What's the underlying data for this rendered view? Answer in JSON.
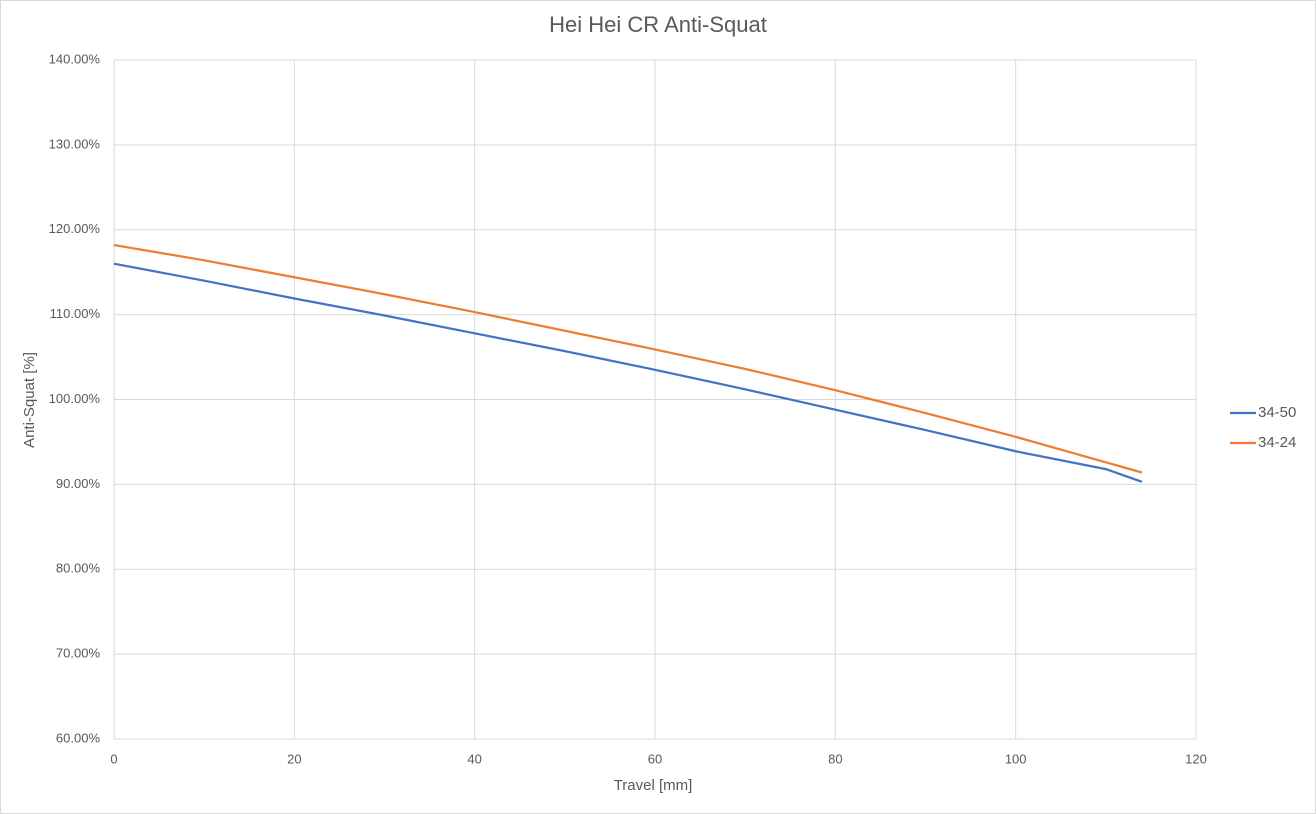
{
  "chart_data": {
    "type": "line",
    "title": "Hei Hei CR Anti-Squat",
    "x_label": "Travel [mm]",
    "y_label": "Anti-Squat [%]",
    "x": [
      0,
      10,
      20,
      30,
      40,
      50,
      60,
      70,
      80,
      90,
      100,
      110,
      114
    ],
    "series": [
      {
        "name": "34-50",
        "color": "#4472c4",
        "values": [
          116.0,
          114.0,
          111.9,
          109.9,
          107.8,
          105.7,
          103.5,
          101.2,
          98.8,
          96.4,
          93.9,
          91.8,
          90.3
        ]
      },
      {
        "name": "34-24",
        "color": "#ed7d31",
        "values": [
          118.2,
          116.4,
          114.4,
          112.4,
          110.3,
          108.1,
          105.9,
          103.6,
          101.1,
          98.4,
          95.6,
          92.6,
          91.4
        ]
      }
    ],
    "xlim": [
      0,
      120
    ],
    "xticks": [
      0,
      20,
      40,
      60,
      80,
      100,
      120
    ],
    "ylim": [
      60,
      140
    ],
    "yticks": [
      {
        "value": 60,
        "label": "60.00%"
      },
      {
        "value": 70,
        "label": "70.00%"
      },
      {
        "value": 80,
        "label": "80.00%"
      },
      {
        "value": 90,
        "label": "90.00%"
      },
      {
        "value": 100,
        "label": "100.00%"
      },
      {
        "value": 110,
        "label": "110.00%"
      },
      {
        "value": 120,
        "label": "120.00%"
      },
      {
        "value": 130,
        "label": "130.00%"
      },
      {
        "value": 140,
        "label": "140.00%"
      }
    ],
    "grid": true,
    "legend": "right"
  }
}
